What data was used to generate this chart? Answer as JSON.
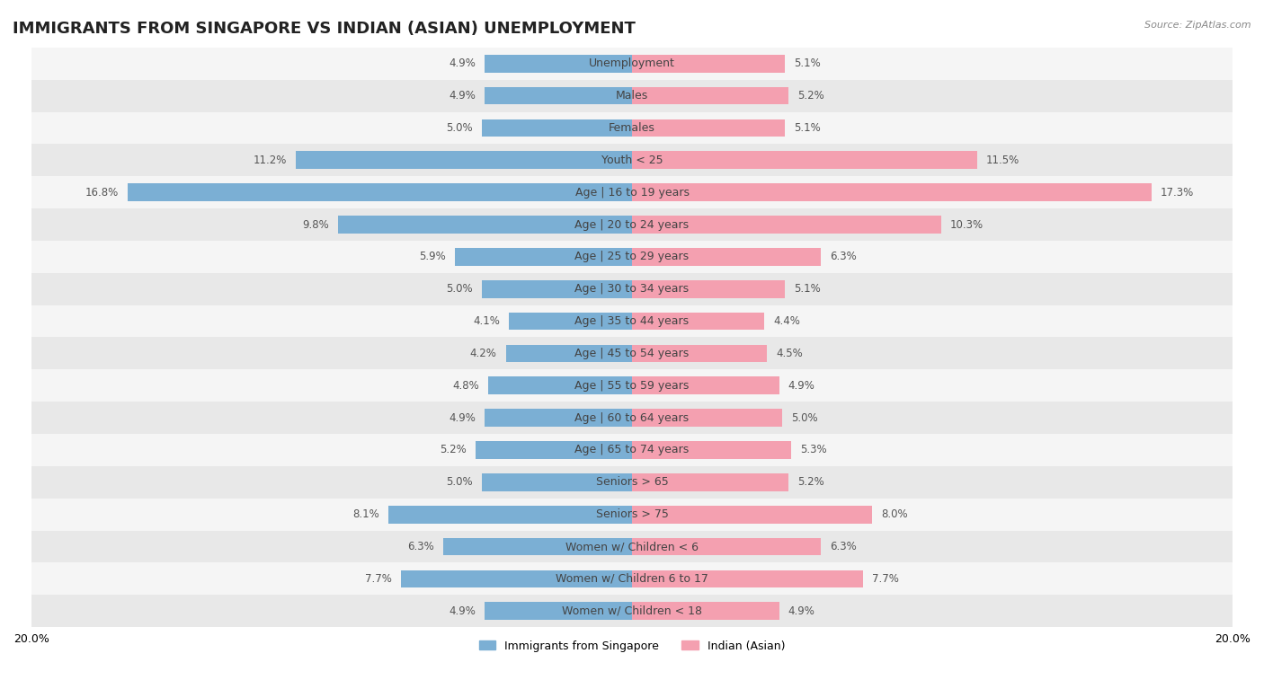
{
  "title": "IMMIGRANTS FROM SINGAPORE VS INDIAN (ASIAN) UNEMPLOYMENT",
  "source": "Source: ZipAtlas.com",
  "categories": [
    "Unemployment",
    "Males",
    "Females",
    "Youth < 25",
    "Age | 16 to 19 years",
    "Age | 20 to 24 years",
    "Age | 25 to 29 years",
    "Age | 30 to 34 years",
    "Age | 35 to 44 years",
    "Age | 45 to 54 years",
    "Age | 55 to 59 years",
    "Age | 60 to 64 years",
    "Age | 65 to 74 years",
    "Seniors > 65",
    "Seniors > 75",
    "Women w/ Children < 6",
    "Women w/ Children 6 to 17",
    "Women w/ Children < 18"
  ],
  "singapore_values": [
    4.9,
    4.9,
    5.0,
    11.2,
    16.8,
    9.8,
    5.9,
    5.0,
    4.1,
    4.2,
    4.8,
    4.9,
    5.2,
    5.0,
    8.1,
    6.3,
    7.7,
    4.9
  ],
  "indian_values": [
    5.1,
    5.2,
    5.1,
    11.5,
    17.3,
    10.3,
    6.3,
    5.1,
    4.4,
    4.5,
    4.9,
    5.0,
    5.3,
    5.2,
    8.0,
    6.3,
    7.7,
    4.9
  ],
  "singapore_color": "#7bafd4",
  "indian_color": "#f4a0b0",
  "singapore_label": "Immigrants from Singapore",
  "indian_label": "Indian (Asian)",
  "axis_limit": 20.0,
  "background_color": "#f0f0f0",
  "row_colors": [
    "#e8e8e8",
    "#f5f5f5"
  ],
  "title_fontsize": 13,
  "label_fontsize": 9,
  "value_fontsize": 8.5
}
